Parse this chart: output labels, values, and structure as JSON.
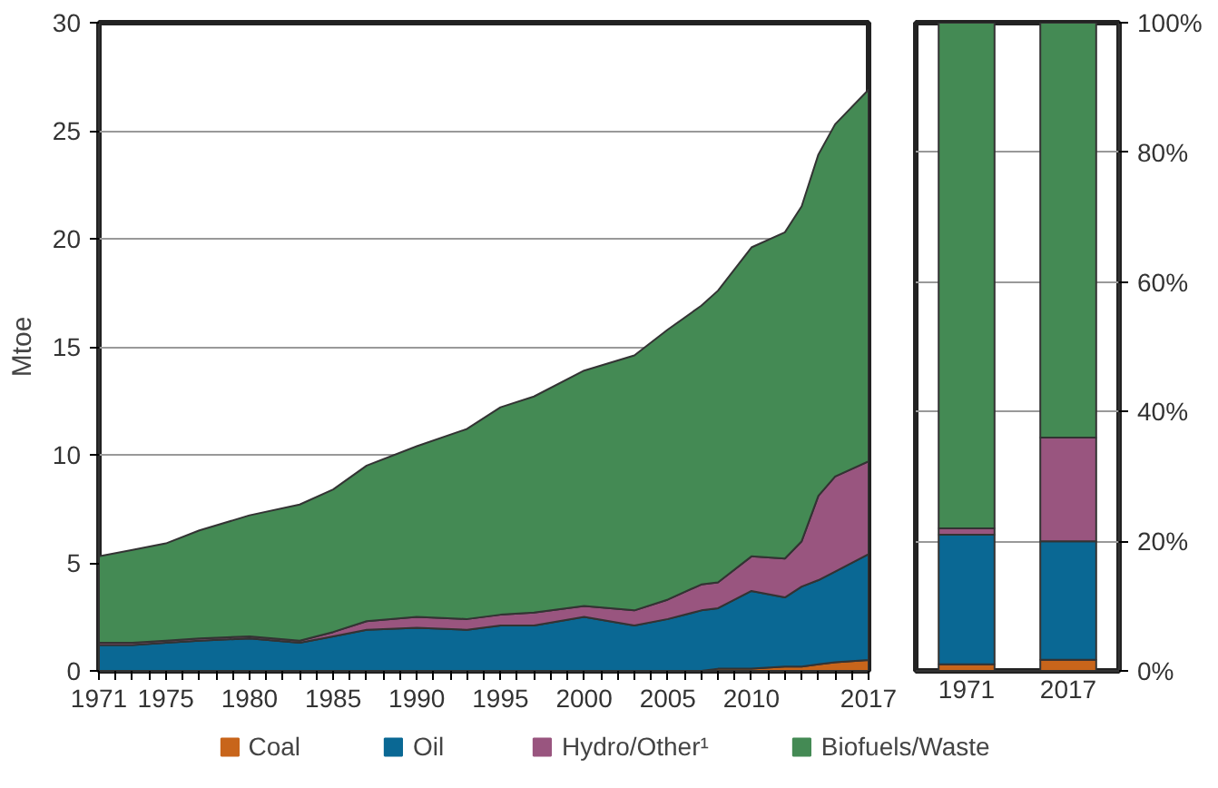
{
  "chart_data": [
    {
      "type": "area",
      "stacked": true,
      "ylabel": "Mtoe",
      "x": [
        1971,
        1973,
        1975,
        1977,
        1980,
        1983,
        1985,
        1987,
        1990,
        1993,
        1995,
        1997,
        2000,
        2003,
        2005,
        2007,
        2008,
        2010,
        2012,
        2013,
        2014,
        2015,
        2017
      ],
      "series": [
        {
          "name": "Coal",
          "color": "#c8651b",
          "values": [
            0,
            0,
            0,
            0,
            0,
            0,
            0,
            0,
            0,
            0,
            0,
            0,
            0,
            0,
            0,
            0,
            0.1,
            0.1,
            0.2,
            0.2,
            0.3,
            0.4,
            0.5
          ]
        },
        {
          "name": "Oil",
          "color": "#0a6894",
          "values": [
            1.2,
            1.2,
            1.3,
            1.4,
            1.5,
            1.3,
            1.6,
            1.9,
            2.0,
            1.9,
            2.1,
            2.1,
            2.5,
            2.1,
            2.4,
            2.8,
            2.8,
            3.6,
            3.2,
            3.7,
            3.9,
            4.2,
            4.9
          ]
        },
        {
          "name": "Hydro/Other¹",
          "color": "#99557f",
          "values": [
            0.1,
            0.1,
            0.1,
            0.1,
            0.1,
            0.1,
            0.2,
            0.4,
            0.5,
            0.5,
            0.5,
            0.6,
            0.5,
            0.7,
            0.9,
            1.2,
            1.2,
            1.6,
            1.8,
            2.1,
            3.9,
            4.4,
            4.3
          ]
        },
        {
          "name": "Biofuels/Waste",
          "color": "#448a54",
          "values": [
            4.0,
            4.3,
            4.5,
            5.0,
            5.6,
            6.3,
            6.6,
            7.2,
            7.9,
            8.8,
            9.6,
            10.0,
            10.9,
            11.8,
            12.5,
            12.9,
            13.5,
            14.3,
            15.1,
            15.5,
            15.8,
            16.3,
            17.2
          ]
        }
      ],
      "xlim": [
        1971,
        2017
      ],
      "xticks": [
        1971,
        {
          "value": 1972,
          "label": null
        },
        {
          "value": 1973,
          "label": null
        },
        {
          "value": 1974,
          "label": null
        },
        1975,
        {
          "value": 1976,
          "label": null
        },
        {
          "value": 1977,
          "label": null
        },
        {
          "value": 1978,
          "label": null
        },
        {
          "value": 1979,
          "label": null
        },
        1980,
        {
          "value": 1981,
          "label": null
        },
        {
          "value": 1982,
          "label": null
        },
        {
          "value": 1983,
          "label": null
        },
        {
          "value": 1984,
          "label": null
        },
        1985,
        {
          "value": 1986,
          "label": null
        },
        {
          "value": 1987,
          "label": null
        },
        {
          "value": 1988,
          "label": null
        },
        {
          "value": 1989,
          "label": null
        },
        1990,
        {
          "value": 1991,
          "label": null
        },
        {
          "value": 1992,
          "label": null
        },
        {
          "value": 1993,
          "label": null
        },
        {
          "value": 1994,
          "label": null
        },
        1995,
        {
          "value": 1996,
          "label": null
        },
        {
          "value": 1997,
          "label": null
        },
        {
          "value": 1998,
          "label": null
        },
        {
          "value": 1999,
          "label": null
        },
        2000,
        {
          "value": 2001,
          "label": null
        },
        {
          "value": 2002,
          "label": null
        },
        {
          "value": 2003,
          "label": null
        },
        {
          "value": 2004,
          "label": null
        },
        2005,
        {
          "value": 2006,
          "label": null
        },
        {
          "value": 2007,
          "label": null
        },
        {
          "value": 2008,
          "label": null
        },
        {
          "value": 2009,
          "label": null
        },
        2010,
        {
          "value": 2011,
          "label": null
        },
        {
          "value": 2012,
          "label": null
        },
        {
          "value": 2013,
          "label": null
        },
        {
          "value": 2014,
          "label": null
        },
        {
          "value": 2015,
          "label": null
        },
        {
          "value": 2016,
          "label": null
        },
        2017
      ],
      "ylim": [
        0,
        30
      ],
      "yticks": [
        0,
        5,
        10,
        15,
        20,
        25,
        30
      ],
      "grid": "y",
      "legend": "bottom"
    },
    {
      "type": "bar",
      "stacked": true,
      "categories": [
        "1971",
        "2017"
      ],
      "series": [
        {
          "color": "#c8651b",
          "values": [
            1,
            1.7
          ]
        },
        {
          "color": "#0a6894",
          "values": [
            20,
            18.3
          ]
        },
        {
          "color": "#99557f",
          "values": [
            1,
            16
          ]
        },
        {
          "color": "#448a54",
          "values": [
            78,
            64
          ]
        }
      ],
      "ylim": [
        0,
        100
      ],
      "yticks": [
        {
          "value": 0,
          "label": "0%"
        },
        {
          "value": 20,
          "label": "20%"
        },
        {
          "value": 40,
          "label": "40%"
        },
        {
          "value": 60,
          "label": "60%"
        },
        {
          "value": 80,
          "label": "80%"
        },
        {
          "value": 100,
          "label": "100%"
        }
      ],
      "grid": "y"
    }
  ]
}
